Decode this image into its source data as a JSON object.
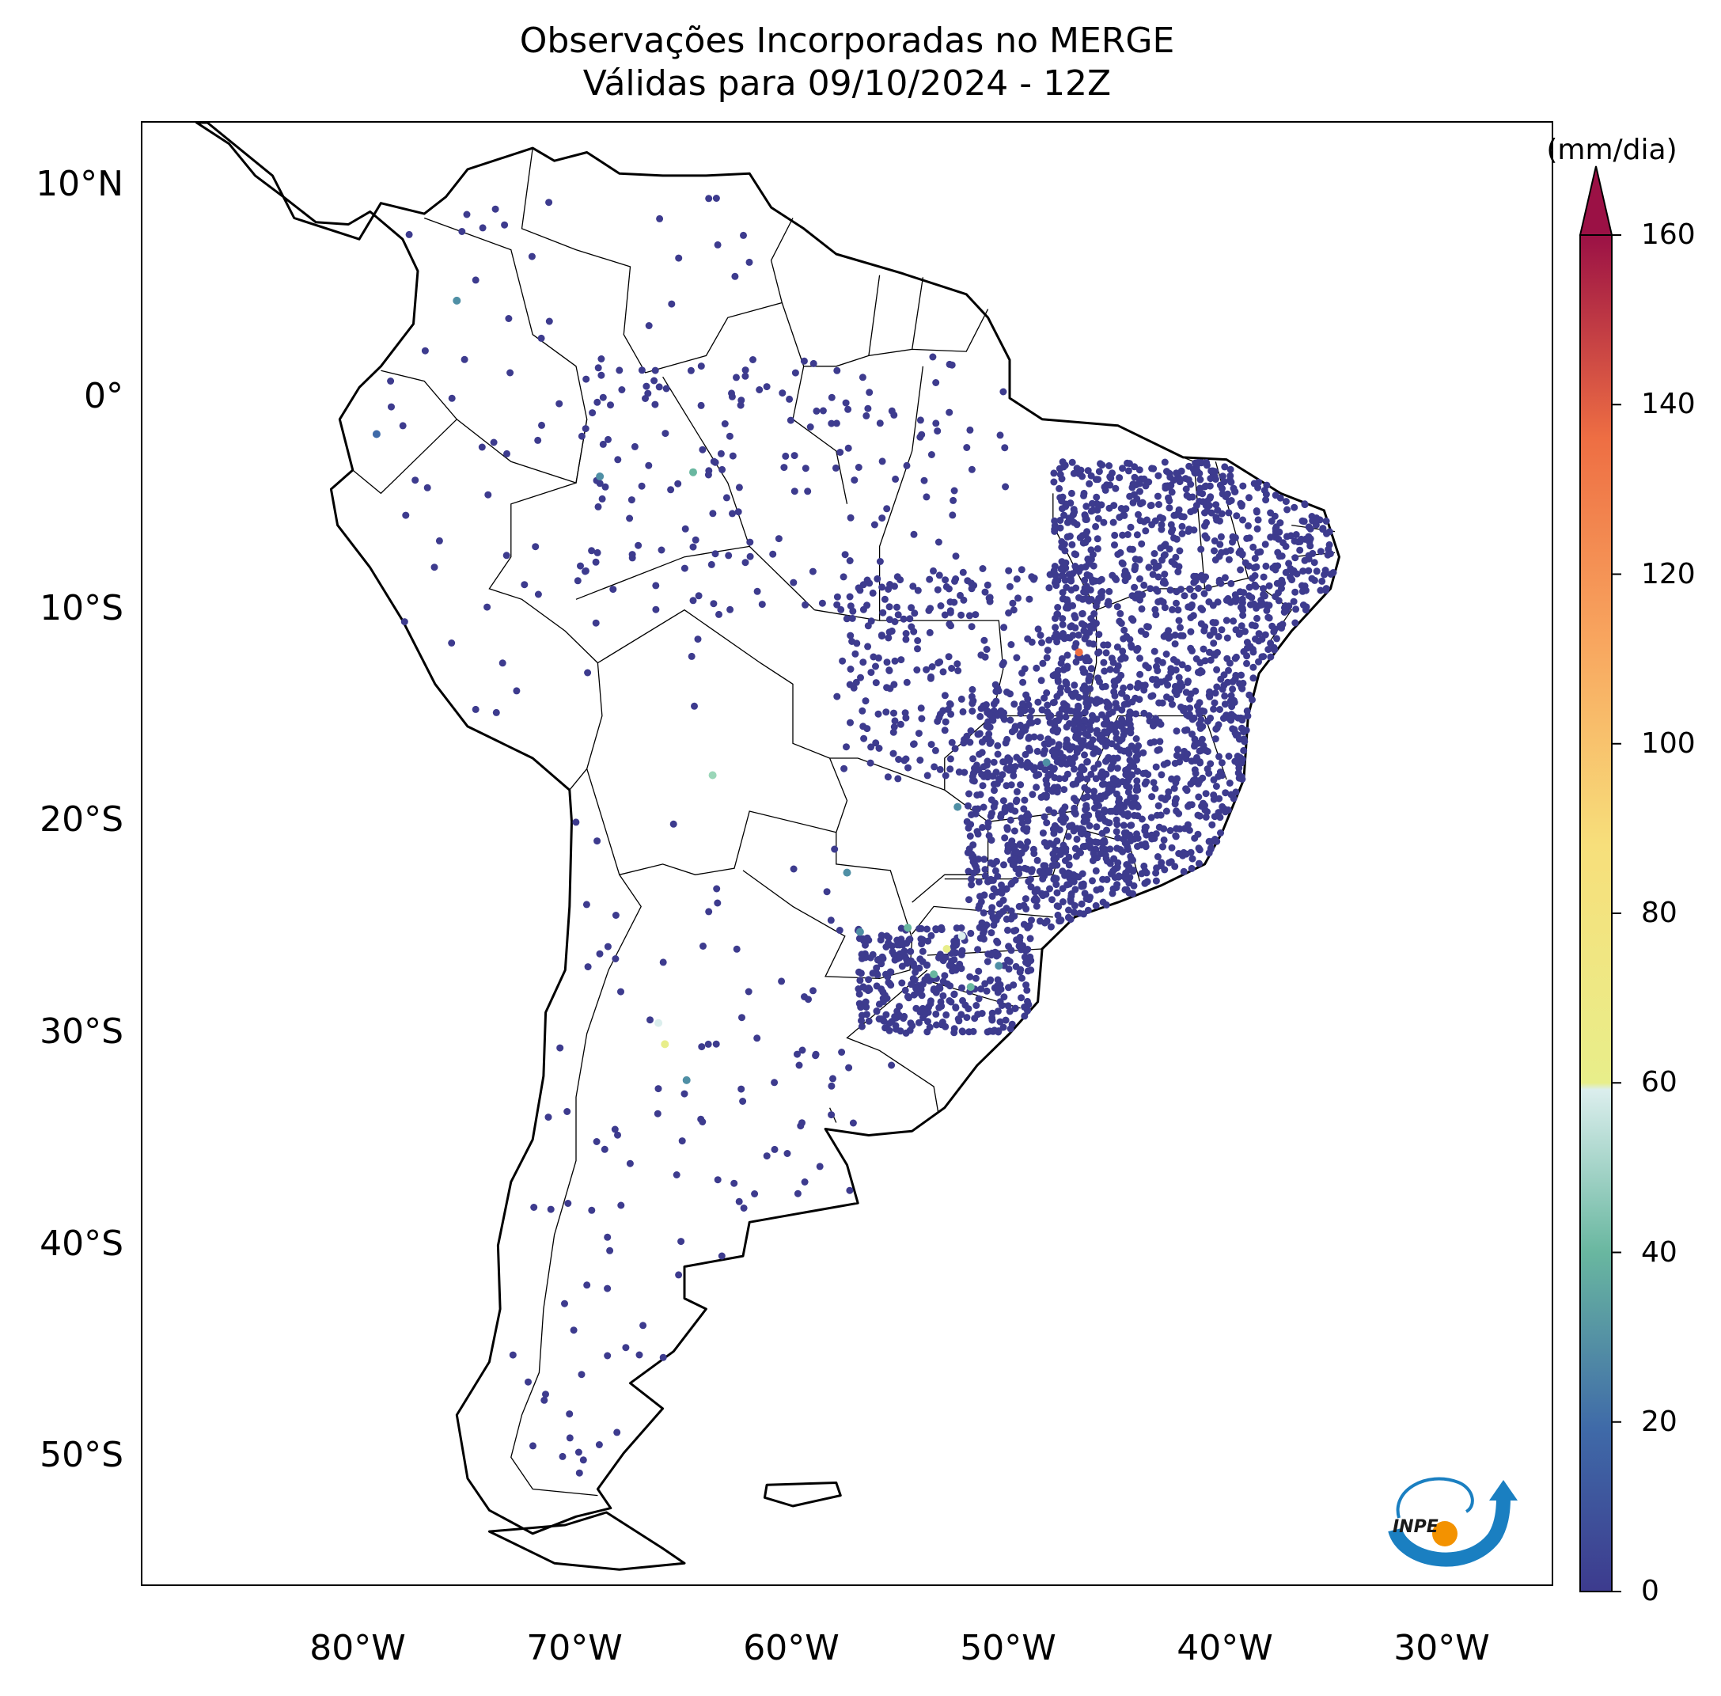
{
  "title": {
    "line1": "Observações Incorporadas no MERGE",
    "line2": "Válidas para 09/10/2024 - 12Z"
  },
  "axes": {
    "lat_labels": [
      "10°N",
      "0°",
      "10°S",
      "20°S",
      "30°S",
      "40°S",
      "50°S"
    ],
    "lon_labels": [
      "80°W",
      "70°W",
      "60°W",
      "50°W",
      "40°W",
      "30°W"
    ],
    "lat_values": [
      10,
      0,
      -10,
      -20,
      -30,
      -40,
      -50
    ],
    "lon_values": [
      -80,
      -70,
      -60,
      -50,
      -40,
      -30
    ],
    "lon_range": [
      -90,
      -25
    ],
    "lat_range": [
      -56,
      13
    ]
  },
  "colorbar": {
    "unit": "(mm/dia)",
    "ticks": [
      "0",
      "20",
      "40",
      "60",
      "80",
      "100",
      "120",
      "140",
      "160"
    ],
    "tick_values": [
      0,
      20,
      40,
      60,
      80,
      100,
      120,
      140,
      160
    ],
    "range": [
      0,
      160
    ],
    "extend": "max",
    "colors": [
      "#3d3b8e",
      "#3f6aa8",
      "#4f8fa5",
      "#69b7a0",
      "#9ad6b8",
      "#dbeeed",
      "#e8ee8a",
      "#f7df7b",
      "#f8a65f",
      "#ee6e43",
      "#c8364b",
      "#9b1145"
    ]
  },
  "logo": {
    "text": "INPE"
  },
  "chart_data": {
    "type": "scatter",
    "title": "Observações Incorporadas no MERGE",
    "subtitle": "Válidas para 09/10/2024 - 12Z",
    "xlabel": "",
    "ylabel": "",
    "xlim": [
      -90,
      -25
    ],
    "ylim": [
      -56,
      13
    ],
    "value_unit": "(mm/dia)",
    "highlight_points": [
      {
        "lon": -75.5,
        "lat": 4.6,
        "value": 30
      },
      {
        "lon": -79.2,
        "lat": -1.7,
        "value": 25
      },
      {
        "lon": -68.9,
        "lat": -3.7,
        "value": 35
      },
      {
        "lon": -64.6,
        "lat": -3.5,
        "value": 45
      },
      {
        "lon": -66.2,
        "lat": -29.5,
        "value": 75
      },
      {
        "lon": -65.9,
        "lat": -30.5,
        "value": 80
      },
      {
        "lon": -64.9,
        "lat": -32.2,
        "value": 30
      },
      {
        "lon": -63.7,
        "lat": -17.8,
        "value": 55
      },
      {
        "lon": -46.8,
        "lat": -12.0,
        "value": 125
      },
      {
        "lon": -52.9,
        "lat": -26.0,
        "value": 90
      },
      {
        "lon": -52.2,
        "lat": -25.4,
        "value": 70
      },
      {
        "lon": -53.5,
        "lat": -27.2,
        "value": 50
      },
      {
        "lon": -51.8,
        "lat": -27.8,
        "value": 40
      },
      {
        "lon": -50.5,
        "lat": -26.8,
        "value": 35
      },
      {
        "lon": -48.3,
        "lat": -17.2,
        "value": 30
      },
      {
        "lon": -52.4,
        "lat": -19.3,
        "value": 28
      },
      {
        "lon": -57.5,
        "lat": -22.4,
        "value": 30
      },
      {
        "lon": -56.9,
        "lat": -25.2,
        "value": 35
      },
      {
        "lon": -54.7,
        "lat": -25.0,
        "value": 45
      }
    ]
  }
}
